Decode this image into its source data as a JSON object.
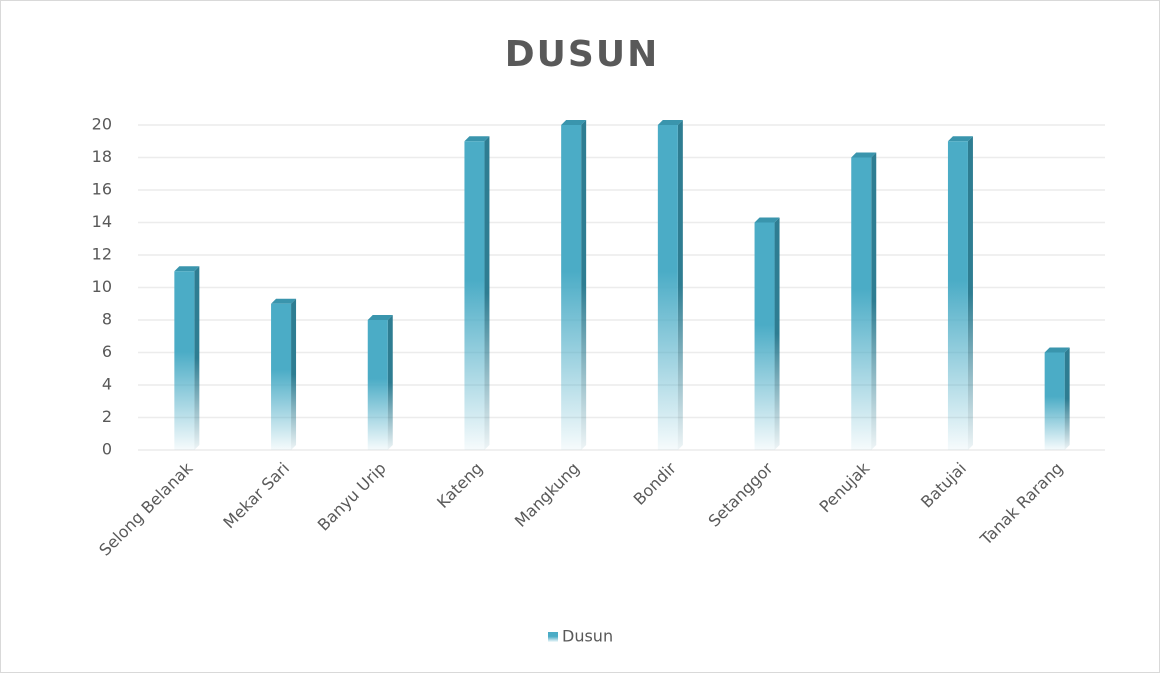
{
  "chart_data": {
    "type": "bar",
    "title": "DUSUN",
    "categories": [
      "Selong Belanak",
      "Mekar Sari",
      "Banyu Urip",
      "Kateng",
      "Mangkung",
      "Bondir",
      "Setanggor",
      "Penujak",
      "Batujai",
      "Tanak Rarang"
    ],
    "series": [
      {
        "name": "Dusun",
        "color": "#4bacc6",
        "values": [
          11,
          9,
          8,
          19,
          20,
          20,
          14,
          18,
          19,
          6
        ]
      }
    ],
    "ylim": [
      0,
      20
    ],
    "yticks": [
      0,
      2,
      4,
      6,
      8,
      10,
      12,
      14,
      16,
      18,
      20
    ],
    "grid": true,
    "legend": "bottom"
  }
}
